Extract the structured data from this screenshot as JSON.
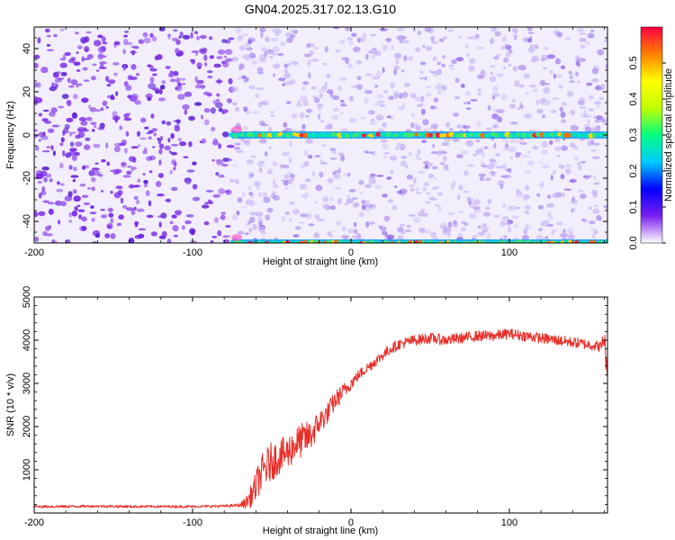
{
  "title": "GN04.2025.317.02.13.G10",
  "chart_data": [
    {
      "type": "heatmap",
      "name": "spectrogram",
      "xlabel": "Height of straight line (km)",
      "ylabel": "Frequency (Hz)",
      "xlim": [
        -200,
        162
      ],
      "ylim": [
        -50,
        50
      ],
      "x_ticks": [
        -200,
        -100,
        0,
        100
      ],
      "y_ticks": [
        -40,
        -20,
        0,
        20,
        40
      ],
      "signal_onset_km": -75,
      "signal_lines_hz": [
        0,
        -50
      ],
      "colorbar": {
        "label": "Normalized spectral amplitude",
        "range": [
          0.0,
          0.6
        ],
        "ticks": [
          0.0,
          0.1,
          0.2,
          0.3,
          0.4,
          0.5
        ],
        "tick_labels": [
          "0.0",
          "0.1",
          "0.2",
          "0.3",
          "0.4",
          "0.5"
        ],
        "colors": [
          "#ffffff",
          "#7a1ff0",
          "#0000ff",
          "#00ccff",
          "#00ff80",
          "#c0ff00",
          "#ffff00",
          "#ff8000",
          "#ff0040"
        ]
      }
    },
    {
      "type": "line",
      "name": "snr",
      "xlabel": "Height of straight line (km)",
      "ylabel": "SNR (10 * v/v)",
      "xlim": [
        -200,
        162
      ],
      "ylim": [
        0,
        5000
      ],
      "x_ticks": [
        -200,
        -100,
        0,
        100
      ],
      "y_ticks": [
        1000,
        2000,
        3000,
        4000,
        5000
      ],
      "color": "#e8302a",
      "series": [
        {
          "name": "SNR",
          "x": [
            -200,
            -180,
            -160,
            -140,
            -120,
            -100,
            -80,
            -70,
            -66,
            -62,
            -58,
            -55,
            -50,
            -45,
            -40,
            -35,
            -30,
            -25,
            -20,
            -15,
            -10,
            -5,
            0,
            5,
            10,
            15,
            20,
            25,
            30,
            35,
            40,
            50,
            60,
            70,
            80,
            90,
            100,
            110,
            120,
            130,
            140,
            150,
            158,
            160,
            162
          ],
          "y": [
            150,
            150,
            160,
            150,
            150,
            150,
            160,
            180,
            250,
            450,
            800,
            1000,
            1200,
            1300,
            1400,
            1600,
            1700,
            1800,
            2100,
            2300,
            2600,
            2800,
            3000,
            3200,
            3350,
            3500,
            3650,
            3800,
            3900,
            3950,
            4000,
            4050,
            4000,
            4050,
            4100,
            4100,
            4150,
            4100,
            4050,
            4000,
            3950,
            3900,
            3850,
            4100,
            3000
          ],
          "noise_amplitude": [
            60,
            60,
            60,
            60,
            60,
            60,
            60,
            80,
            300,
            600,
            800,
            900,
            900,
            800,
            800,
            800,
            800,
            700,
            600,
            500,
            450,
            400,
            300,
            250,
            250,
            250,
            250,
            250,
            250,
            250,
            250,
            250,
            250,
            250,
            250,
            250,
            250,
            250,
            250,
            250,
            250,
            250,
            250,
            600,
            600
          ]
        }
      ]
    }
  ]
}
